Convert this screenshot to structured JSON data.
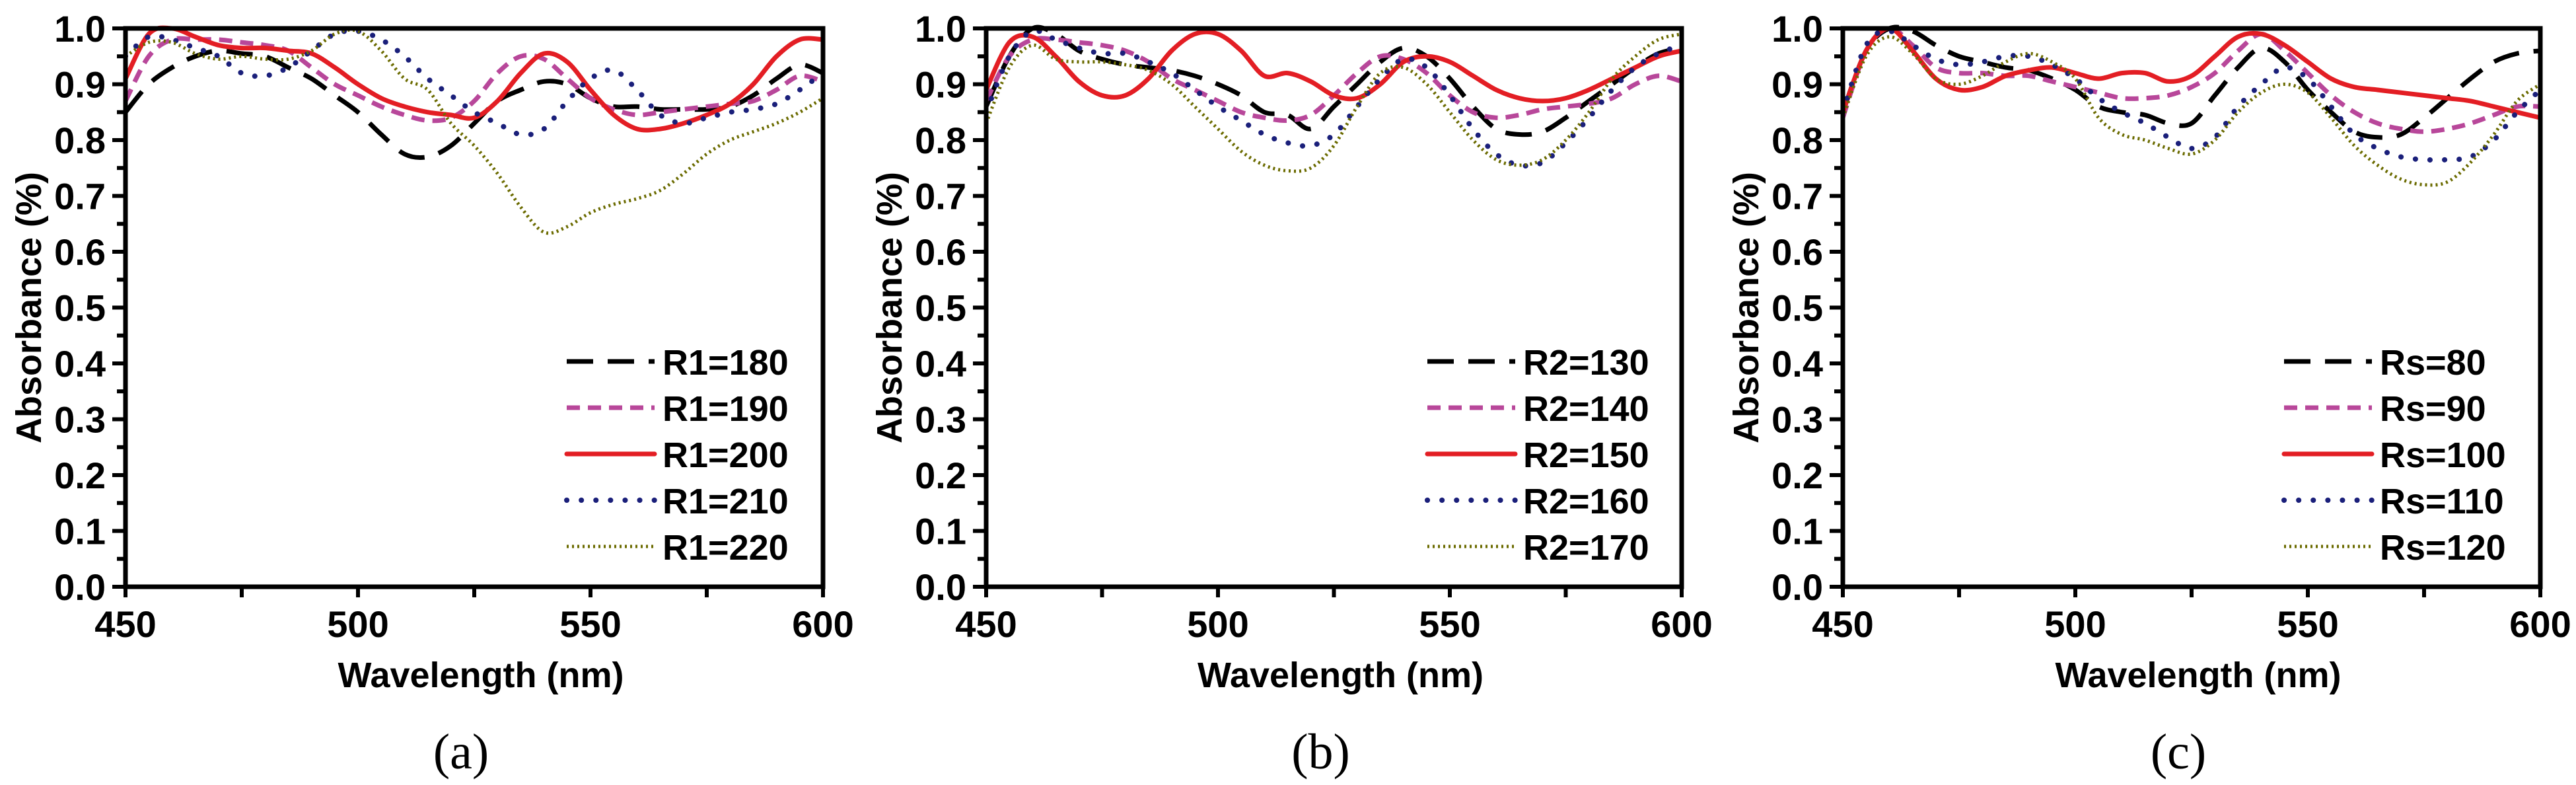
{
  "chart_data": [
    {
      "type": "line",
      "caption": "(a)",
      "xlabel": "Wavelength (nm)",
      "ylabel": "Absorbance (%)",
      "xlim": [
        450,
        600
      ],
      "ylim": [
        0.0,
        1.0
      ],
      "xticks": [
        "450",
        "500",
        "550",
        "600"
      ],
      "yticks": [
        "0.0",
        "0.1",
        "0.2",
        "0.3",
        "0.4",
        "0.5",
        "0.6",
        "0.7",
        "0.8",
        "0.9",
        "1.0"
      ],
      "legend_position": "bottom-right",
      "grid": false,
      "x": [
        450,
        455,
        460,
        465,
        470,
        475,
        480,
        485,
        490,
        495,
        500,
        505,
        510,
        515,
        520,
        525,
        530,
        535,
        540,
        545,
        550,
        555,
        560,
        565,
        570,
        575,
        580,
        585,
        590,
        595,
        600
      ],
      "series": [
        {
          "name": "R1=180",
          "style": "dashed",
          "color": "#000000",
          "values": [
            0.85,
            0.9,
            0.93,
            0.95,
            0.96,
            0.955,
            0.95,
            0.93,
            0.91,
            0.88,
            0.85,
            0.81,
            0.775,
            0.77,
            0.79,
            0.83,
            0.87,
            0.89,
            0.905,
            0.9,
            0.875,
            0.86,
            0.86,
            0.855,
            0.855,
            0.855,
            0.86,
            0.88,
            0.91,
            0.935,
            0.92
          ]
        },
        {
          "name": "R1=190",
          "style": "short-dashed",
          "color": "#b8479a",
          "values": [
            0.87,
            0.95,
            0.98,
            0.98,
            0.98,
            0.975,
            0.97,
            0.96,
            0.93,
            0.9,
            0.88,
            0.86,
            0.845,
            0.835,
            0.84,
            0.87,
            0.92,
            0.95,
            0.945,
            0.91,
            0.875,
            0.855,
            0.845,
            0.85,
            0.855,
            0.86,
            0.865,
            0.87,
            0.89,
            0.915,
            0.905
          ]
        },
        {
          "name": "R1=200",
          "style": "solid",
          "color": "#e31e24",
          "values": [
            0.91,
            0.99,
            1.0,
            0.985,
            0.97,
            0.965,
            0.965,
            0.96,
            0.955,
            0.93,
            0.9,
            0.875,
            0.86,
            0.85,
            0.845,
            0.84,
            0.87,
            0.92,
            0.955,
            0.94,
            0.89,
            0.845,
            0.82,
            0.82,
            0.83,
            0.845,
            0.865,
            0.9,
            0.95,
            0.98,
            0.98
          ]
        },
        {
          "name": "R1=210",
          "style": "dotted",
          "color": "#1a1f7a",
          "values": [
            0.95,
            0.985,
            0.98,
            0.965,
            0.95,
            0.92,
            0.915,
            0.93,
            0.96,
            0.99,
            0.995,
            0.98,
            0.95,
            0.91,
            0.88,
            0.85,
            0.83,
            0.81,
            0.82,
            0.87,
            0.91,
            0.925,
            0.89,
            0.845,
            0.83,
            0.84,
            0.85,
            0.855,
            0.865,
            0.89,
            0.92
          ]
        },
        {
          "name": "R1=220",
          "style": "fine-dotted",
          "color": "#6b6b00",
          "values": [
            0.95,
            0.975,
            0.975,
            0.955,
            0.945,
            0.95,
            0.945,
            0.945,
            0.96,
            0.99,
            0.995,
            0.96,
            0.91,
            0.89,
            0.83,
            0.79,
            0.74,
            0.68,
            0.635,
            0.645,
            0.67,
            0.685,
            0.695,
            0.71,
            0.74,
            0.775,
            0.8,
            0.815,
            0.83,
            0.85,
            0.875
          ]
        }
      ]
    },
    {
      "type": "line",
      "caption": "(b)",
      "xlabel": "Wavelength (nm)",
      "ylabel": "Absorbance (%)",
      "xlim": [
        450,
        600
      ],
      "ylim": [
        0.0,
        1.0
      ],
      "xticks": [
        "450",
        "500",
        "550",
        "600"
      ],
      "yticks": [
        "0.0",
        "0.1",
        "0.2",
        "0.3",
        "0.4",
        "0.5",
        "0.6",
        "0.7",
        "0.8",
        "0.9",
        "1.0"
      ],
      "legend_position": "bottom-right",
      "grid": false,
      "x": [
        450,
        455,
        460,
        465,
        470,
        475,
        480,
        485,
        490,
        495,
        500,
        505,
        510,
        515,
        520,
        525,
        530,
        535,
        540,
        545,
        550,
        555,
        560,
        565,
        570,
        575,
        580,
        585,
        590,
        595,
        600
      ],
      "series": [
        {
          "name": "R2=130",
          "style": "dashed",
          "color": "#000000",
          "values": [
            0.86,
            0.95,
            1.0,
            0.99,
            0.96,
            0.945,
            0.935,
            0.93,
            0.925,
            0.915,
            0.9,
            0.88,
            0.85,
            0.845,
            0.82,
            0.86,
            0.9,
            0.94,
            0.965,
            0.95,
            0.91,
            0.86,
            0.82,
            0.81,
            0.815,
            0.84,
            0.87,
            0.9,
            0.93,
            0.955,
            0.965
          ]
        },
        {
          "name": "R2=140",
          "style": "short-dashed",
          "color": "#b8479a",
          "values": [
            0.87,
            0.95,
            0.98,
            0.98,
            0.975,
            0.97,
            0.96,
            0.94,
            0.91,
            0.89,
            0.87,
            0.85,
            0.84,
            0.835,
            0.845,
            0.88,
            0.92,
            0.95,
            0.945,
            0.92,
            0.88,
            0.85,
            0.84,
            0.845,
            0.855,
            0.86,
            0.865,
            0.875,
            0.9,
            0.915,
            0.905
          ]
        },
        {
          "name": "R2=150",
          "style": "solid",
          "color": "#e31e24",
          "values": [
            0.89,
            0.975,
            0.985,
            0.95,
            0.905,
            0.88,
            0.88,
            0.91,
            0.96,
            0.99,
            0.99,
            0.96,
            0.915,
            0.92,
            0.905,
            0.88,
            0.875,
            0.9,
            0.94,
            0.95,
            0.94,
            0.915,
            0.89,
            0.875,
            0.87,
            0.875,
            0.89,
            0.91,
            0.93,
            0.95,
            0.96
          ]
        },
        {
          "name": "R2=160",
          "style": "dotted",
          "color": "#1a1f7a",
          "values": [
            0.85,
            0.95,
            0.995,
            0.98,
            0.965,
            0.955,
            0.955,
            0.94,
            0.92,
            0.89,
            0.86,
            0.835,
            0.81,
            0.795,
            0.79,
            0.81,
            0.86,
            0.91,
            0.945,
            0.93,
            0.88,
            0.82,
            0.775,
            0.755,
            0.76,
            0.795,
            0.84,
            0.89,
            0.93,
            0.955,
            0.97
          ]
        },
        {
          "name": "R2=170",
          "style": "fine-dotted",
          "color": "#6b6b00",
          "values": [
            0.83,
            0.93,
            0.97,
            0.945,
            0.94,
            0.94,
            0.935,
            0.925,
            0.9,
            0.86,
            0.82,
            0.78,
            0.755,
            0.745,
            0.75,
            0.79,
            0.86,
            0.92,
            0.93,
            0.9,
            0.85,
            0.8,
            0.765,
            0.755,
            0.765,
            0.8,
            0.85,
            0.91,
            0.95,
            0.98,
            0.99
          ]
        }
      ]
    },
    {
      "type": "line",
      "caption": "(c)",
      "xlabel": "Wavelength (nm)",
      "ylabel": "Absorbance (%)",
      "xlim": [
        450,
        600
      ],
      "ylim": [
        0.0,
        1.0
      ],
      "xticks": [
        "450",
        "500",
        "550",
        "600"
      ],
      "yticks": [
        "0.0",
        "0.1",
        "0.2",
        "0.3",
        "0.4",
        "0.5",
        "0.6",
        "0.7",
        "0.8",
        "0.9",
        "1.0"
      ],
      "legend_position": "bottom-right",
      "grid": false,
      "x": [
        450,
        455,
        460,
        465,
        470,
        475,
        480,
        485,
        490,
        495,
        500,
        505,
        510,
        515,
        520,
        525,
        530,
        535,
        540,
        545,
        550,
        555,
        560,
        565,
        570,
        575,
        580,
        585,
        590,
        595,
        600
      ],
      "series": [
        {
          "name": "Rs=80",
          "style": "dashed",
          "color": "#000000",
          "values": [
            0.85,
            0.96,
            1.0,
            0.995,
            0.97,
            0.95,
            0.94,
            0.93,
            0.925,
            0.91,
            0.89,
            0.86,
            0.85,
            0.845,
            0.83,
            0.83,
            0.88,
            0.93,
            0.965,
            0.94,
            0.89,
            0.85,
            0.815,
            0.805,
            0.81,
            0.84,
            0.875,
            0.91,
            0.94,
            0.955,
            0.96
          ]
        },
        {
          "name": "Rs=90",
          "style": "short-dashed",
          "color": "#b8479a",
          "values": [
            0.84,
            0.96,
            1.0,
            0.97,
            0.93,
            0.92,
            0.92,
            0.915,
            0.915,
            0.905,
            0.895,
            0.885,
            0.875,
            0.875,
            0.88,
            0.895,
            0.92,
            0.96,
            0.99,
            0.96,
            0.92,
            0.88,
            0.85,
            0.83,
            0.82,
            0.815,
            0.82,
            0.83,
            0.845,
            0.86,
            0.86
          ]
        },
        {
          "name": "Rs=100",
          "style": "solid",
          "color": "#e31e24",
          "values": [
            0.85,
            0.96,
            1.0,
            0.96,
            0.91,
            0.89,
            0.895,
            0.915,
            0.925,
            0.93,
            0.92,
            0.91,
            0.92,
            0.92,
            0.905,
            0.915,
            0.95,
            0.985,
            0.99,
            0.97,
            0.94,
            0.91,
            0.895,
            0.89,
            0.885,
            0.88,
            0.875,
            0.87,
            0.86,
            0.85,
            0.84
          ]
        },
        {
          "name": "Rs=110",
          "style": "dotted",
          "color": "#1a1f7a",
          "values": [
            0.85,
            0.97,
            0.995,
            0.97,
            0.945,
            0.935,
            0.94,
            0.95,
            0.95,
            0.935,
            0.91,
            0.875,
            0.85,
            0.83,
            0.805,
            0.785,
            0.805,
            0.86,
            0.9,
            0.93,
            0.91,
            0.86,
            0.81,
            0.785,
            0.77,
            0.765,
            0.765,
            0.77,
            0.8,
            0.85,
            0.89
          ]
        },
        {
          "name": "Rs=120",
          "style": "fine-dotted",
          "color": "#6b6b00",
          "values": [
            0.84,
            0.95,
            0.985,
            0.955,
            0.91,
            0.9,
            0.915,
            0.94,
            0.955,
            0.94,
            0.91,
            0.84,
            0.81,
            0.8,
            0.785,
            0.775,
            0.8,
            0.85,
            0.885,
            0.9,
            0.885,
            0.84,
            0.79,
            0.755,
            0.73,
            0.72,
            0.725,
            0.76,
            0.81,
            0.87,
            0.9
          ]
        }
      ]
    }
  ]
}
